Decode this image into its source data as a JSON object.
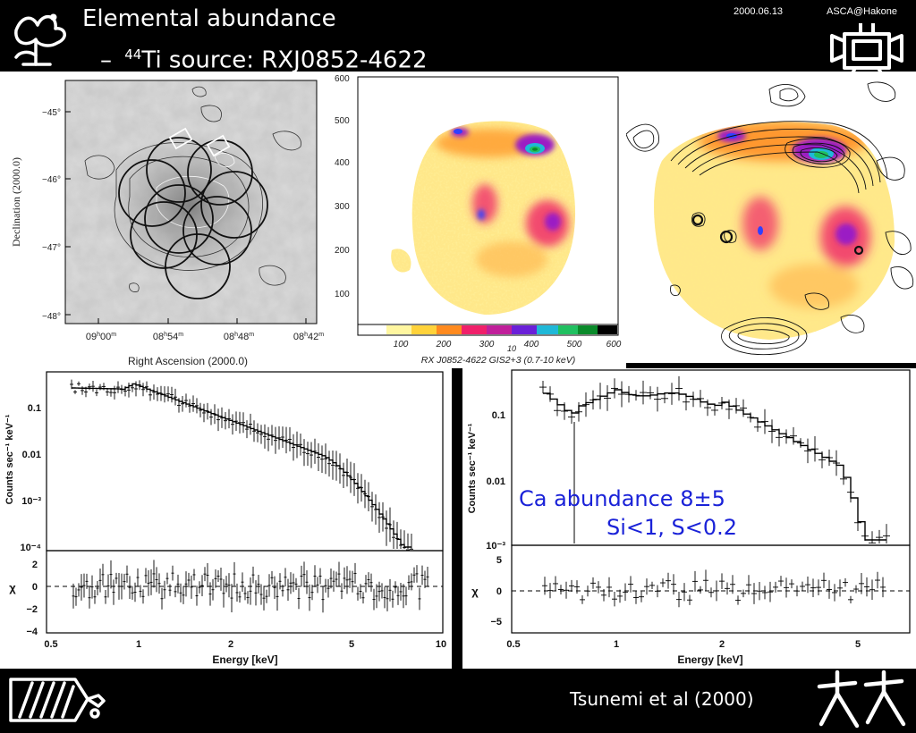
{
  "header": {
    "bullet": "•",
    "title": "Elemental abundance",
    "sub_dash": "–",
    "sub_sup": "44",
    "sub_text": "Ti source: RXJ0852-4622",
    "date": "2000.06.13",
    "venue": "ASCA@Hakone"
  },
  "map_panel": {
    "ylabel": "Declination (2000.0)",
    "xlabel": "Right Ascension (2000.0)",
    "dec_ticks": [
      "−45°",
      "−46°",
      "−47°",
      "−48°"
    ],
    "ra_ticks": [
      {
        "h": "09",
        "hs": "h",
        "m": "00",
        "ms": "m"
      },
      {
        "h": "08",
        "hs": "h",
        "m": "54",
        "ms": "m"
      },
      {
        "h": "08",
        "hs": "h",
        "m": "48",
        "ms": "m"
      },
      {
        "h": "08",
        "hs": "h",
        "m": "42",
        "ms": "m"
      }
    ]
  },
  "gis_image": {
    "y_ticks": [
      "600",
      "500",
      "400",
      "300",
      "200",
      "100"
    ],
    "colorbar_ticks": [
      "100",
      "200",
      "300",
      "400",
      "500",
      "600"
    ],
    "colorbar_sub": "10",
    "caption": "RX J0852-4622 GIS2+3 (0.7-10 keV)"
  },
  "spectrum_left": {
    "ylabel": "Counts sec⁻¹ keV⁻¹",
    "y_ticks": [
      "0.1",
      "0.01",
      "10⁻³",
      "10⁻⁴"
    ],
    "chi_label": "χ",
    "chi_ticks": [
      "2",
      "0",
      "−2",
      "−4"
    ],
    "x_ticks": [
      "0.5",
      "1",
      "2",
      "5",
      "10"
    ],
    "xlabel": "Energy [keV]"
  },
  "spectrum_right": {
    "ylabel": "Counts sec⁻¹ keV⁻¹",
    "y_ticks": [
      "0.1",
      "0.01",
      "10⁻³"
    ],
    "chi_label": "χ",
    "chi_ticks": [
      "5",
      "0",
      "−5"
    ],
    "x_ticks": [
      "0.5",
      "1",
      "2",
      "5"
    ],
    "xlabel": "Energy [keV]",
    "annotation_line1": "Ca abundance 8±5",
    "annotation_line2": "Si<1, S<0.2"
  },
  "footer": {
    "citation": "Tsunemi et al (2000)"
  },
  "colors": {
    "background": "#000000",
    "annotation": "#1a22d8",
    "colormap": [
      "#ffffff",
      "#fff6a0",
      "#ffd23a",
      "#ff8a1e",
      "#f0206a",
      "#9b1fc4",
      "#3040ff",
      "#1fb8d8",
      "#20c060",
      "#0a8a2a",
      "#000000"
    ]
  },
  "icons": {
    "logo_top_left": "flower-doodle-icon",
    "logo_top_right": "robot-doodle-icon",
    "logo_bottom_left": "fish-doodle-icon",
    "logo_bottom_right": "dancing-figures-icon"
  }
}
